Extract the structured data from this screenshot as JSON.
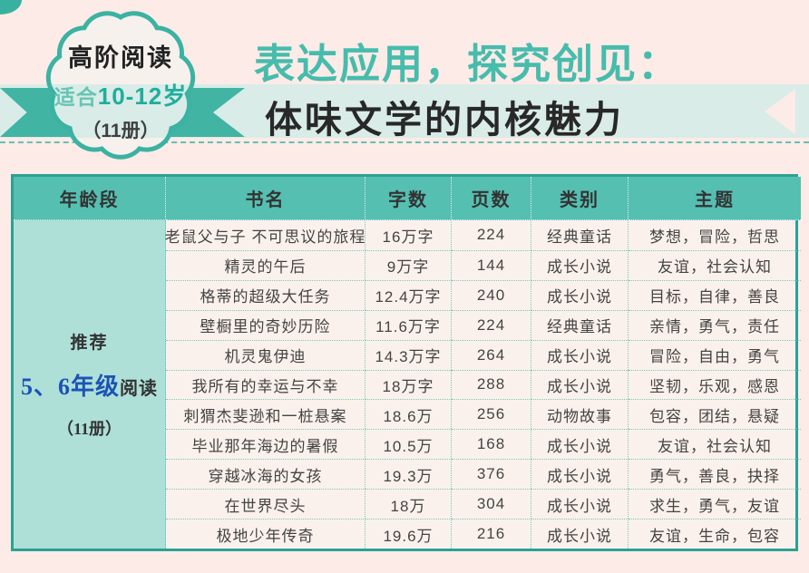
{
  "badge": {
    "line1": "高阶阅读",
    "line2_prefix": "适合",
    "line2_range": "10-12岁",
    "line3": "（11册）"
  },
  "title": {
    "line1": "表达应用，探究创见：",
    "line2": "体味文学的内核魅力"
  },
  "colors": {
    "accent_teal": "#41b4a4",
    "header_teal": "#55bfb2",
    "light_band": "#d9ece7",
    "age_column": "#aee0d8",
    "row_background": "#fbf1ec",
    "page_background": "#fcebe7",
    "title_teal": "#46bcac",
    "grade_blue": "#1d53b5"
  },
  "table": {
    "headers": [
      "年龄段",
      "书名",
      "字数",
      "页数",
      "类别",
      "主题"
    ],
    "age_group": {
      "line1": "推荐",
      "line2_grade": "5、6年级",
      "line2_rest": "阅读",
      "line3": "（11册）"
    },
    "rows": [
      {
        "title": "老鼠父与子 不可思议的旅程",
        "words": "16万字",
        "pages": "224",
        "category": "经典童话",
        "theme": "梦想，冒险，哲思"
      },
      {
        "title": "精灵的午后",
        "words": "9万字",
        "pages": "144",
        "category": "成长小说",
        "theme": "友谊，社会认知"
      },
      {
        "title": "格蒂的超级大任务",
        "words": "12.4万字",
        "pages": "240",
        "category": "成长小说",
        "theme": "目标，自律，善良"
      },
      {
        "title": "壁橱里的奇妙历险",
        "words": "11.6万字",
        "pages": "224",
        "category": "经典童话",
        "theme": "亲情，勇气，责任"
      },
      {
        "title": "机灵鬼伊迪",
        "words": "14.3万字",
        "pages": "264",
        "category": "成长小说",
        "theme": "冒险，自由，勇气"
      },
      {
        "title": "我所有的幸运与不幸",
        "words": "18万字",
        "pages": "288",
        "category": "成长小说",
        "theme": "坚韧，乐观，感恩"
      },
      {
        "title": "刺猬杰斐逊和一桩悬案",
        "words": "18.6万",
        "pages": "256",
        "category": "动物故事",
        "theme": "包容，团结，悬疑"
      },
      {
        "title": "毕业那年海边的暑假",
        "words": "10.5万",
        "pages": "168",
        "category": "成长小说",
        "theme": "友谊，社会认知"
      },
      {
        "title": "穿越冰海的女孩",
        "words": "19.3万",
        "pages": "376",
        "category": "成长小说",
        "theme": "勇气，善良，抉择"
      },
      {
        "title": "在世界尽头",
        "words": "18万",
        "pages": "304",
        "category": "成长小说",
        "theme": "求生，勇气，友谊"
      },
      {
        "title": "极地少年传奇",
        "words": "19.6万",
        "pages": "216",
        "category": "成长小说",
        "theme": "友谊，生命，包容"
      }
    ]
  }
}
